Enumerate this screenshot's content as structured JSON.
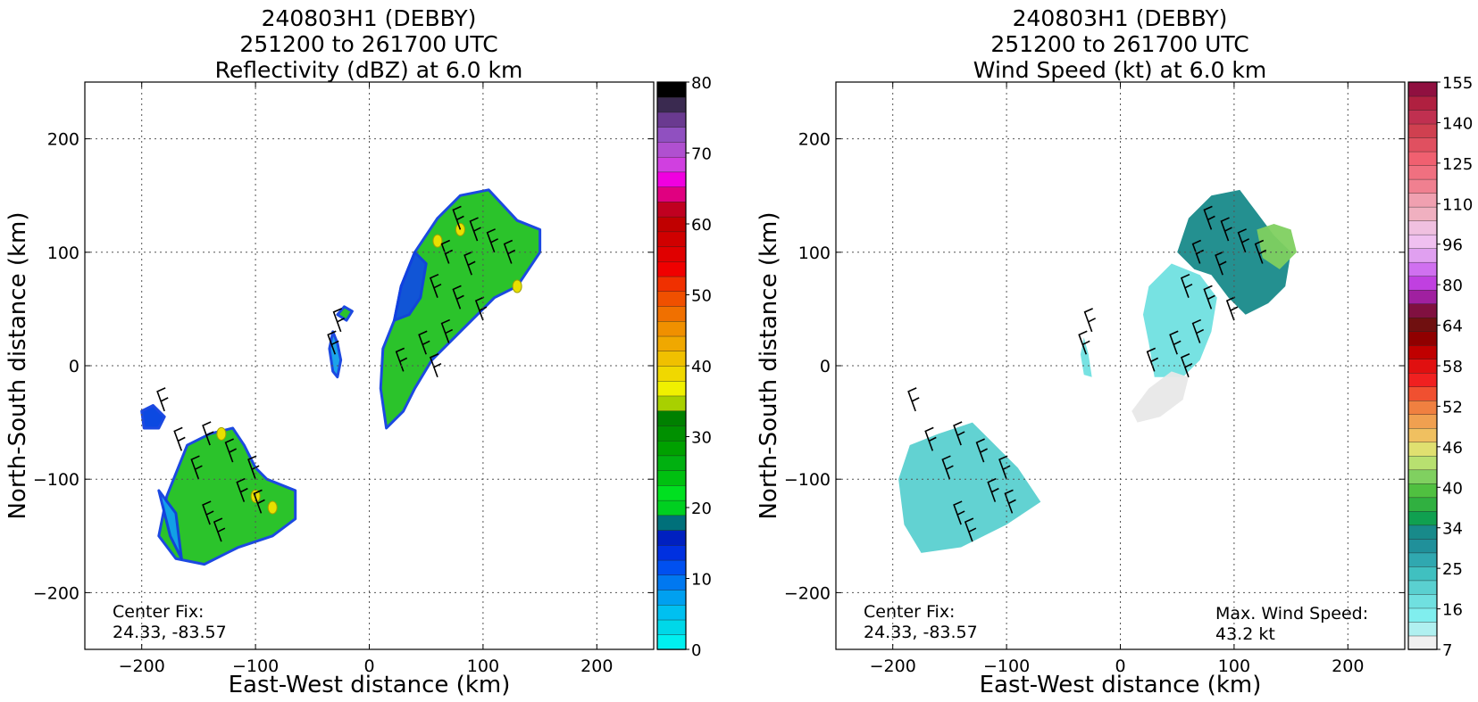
{
  "charts": [
    {
      "id": "reflectivity",
      "title_lines": [
        "240803H1 (DEBBY)",
        "251200 to 261700 UTC",
        "Reflectivity (dBZ) at 6.0 km"
      ],
      "xlabel": "East-West distance (km)",
      "ylabel": "North-South distance (km)",
      "xticks": [
        -200,
        -100,
        0,
        100,
        200
      ],
      "yticks": [
        200,
        100,
        0,
        -100,
        -200
      ],
      "center_fix_label": "Center Fix:",
      "center_fix_value": "24.33, -83.57",
      "max_wind_label": "",
      "max_wind_value": "",
      "colorbar_ticks": [
        "80",
        "70",
        "60",
        "50",
        "40",
        "30",
        "20",
        "10",
        "0"
      ]
    },
    {
      "id": "wind",
      "title_lines": [
        "240803H1 (DEBBY)",
        "251200 to 261700 UTC",
        "Wind Speed (kt) at 6.0 km"
      ],
      "xlabel": "East-West distance (km)",
      "ylabel": "North-South distance (km)",
      "xticks": [
        -200,
        -100,
        0,
        100,
        200
      ],
      "yticks": [
        200,
        100,
        0,
        -100,
        -200
      ],
      "center_fix_label": "Center Fix:",
      "center_fix_value": "24.33, -83.57",
      "max_wind_label": "Max. Wind Speed:",
      "max_wind_value": "43.2 kt",
      "colorbar_ticks": [
        "155",
        "140",
        "125",
        "110",
        "96",
        "80",
        "64",
        "58",
        "52",
        "46",
        "40",
        "34",
        "25",
        "16",
        "7"
      ]
    }
  ],
  "chart_data": [
    {
      "type": "heatmap",
      "title": "240803H1 (DEBBY) 251200 to 261700 UTC Reflectivity (dBZ) at 6.0 km",
      "xlabel": "East-West distance (km)",
      "ylabel": "North-South distance (km)",
      "xlim": [
        -250,
        250
      ],
      "ylim": [
        -250,
        250
      ],
      "grid": true,
      "colorbar": {
        "vmin": 0,
        "vmax": 80,
        "colors": [
          "#00f0f0",
          "#00d8e8",
          "#00c0f0",
          "#00a0f0",
          "#0078f0",
          "#0050f0",
          "#0030e0",
          "#0020c0",
          "#00707a",
          "#00d020",
          "#00e020",
          "#00c010",
          "#00b010",
          "#00a000",
          "#009000",
          "#008000",
          "#a8d000",
          "#f0f000",
          "#f0d800",
          "#f0c000",
          "#f0a800",
          "#f09000",
          "#f07000",
          "#f05000",
          "#f03000",
          "#f00000",
          "#e00000",
          "#d00000",
          "#c00000",
          "#c00020",
          "#e00080",
          "#f000e0",
          "#d040e0",
          "#b050d0",
          "#9050c0",
          "#6a3a90",
          "#3a2a50",
          "#000000"
        ],
        "ticks": [
          0,
          10,
          20,
          30,
          40,
          50,
          60,
          70,
          80
        ]
      },
      "regions": [
        {
          "name": "main band NE",
          "dbz": 22,
          "color": "#20c020",
          "polygon": [
            [
              15,
              -55
            ],
            [
              30,
              -40
            ],
            [
              40,
              -20
            ],
            [
              55,
              5
            ],
            [
              80,
              30
            ],
            [
              110,
              60
            ],
            [
              130,
              70
            ],
            [
              150,
              100
            ],
            [
              150,
              120
            ],
            [
              130,
              128
            ],
            [
              105,
              155
            ],
            [
              80,
              150
            ],
            [
              60,
              130
            ],
            [
              40,
              100
            ],
            [
              28,
              70
            ],
            [
              22,
              40
            ],
            [
              12,
              15
            ],
            [
              10,
              -20
            ]
          ]
        },
        {
          "name": "northeast rim low dbz",
          "dbz": 12,
          "color": "#1050e0",
          "polygon": [
            [
              28,
              70
            ],
            [
              40,
              100
            ],
            [
              50,
              90
            ],
            [
              45,
              60
            ],
            [
              35,
              45
            ],
            [
              22,
              40
            ]
          ]
        },
        {
          "name": "small cell north",
          "dbz": 20,
          "color": "#20c020",
          "polygon": [
            [
              -28,
              45
            ],
            [
              -22,
              52
            ],
            [
              -15,
              48
            ],
            [
              -20,
              40
            ]
          ]
        },
        {
          "name": "west arc",
          "dbz": 5,
          "color": "#10a0e8",
          "polygon": [
            [
              -32,
              30
            ],
            [
              -28,
              20
            ],
            [
              -25,
              5
            ],
            [
              -28,
              -10
            ],
            [
              -32,
              -5
            ],
            [
              -35,
              15
            ]
          ]
        },
        {
          "name": "SW cluster",
          "dbz": 20,
          "color": "#20c020",
          "polygon": [
            [
              -160,
              -70
            ],
            [
              -140,
              -60
            ],
            [
              -120,
              -55
            ],
            [
              -110,
              -70
            ],
            [
              -100,
              -90
            ],
            [
              -90,
              -100
            ],
            [
              -65,
              -110
            ],
            [
              -65,
              -135
            ],
            [
              -85,
              -150
            ],
            [
              -115,
              -160
            ],
            [
              -145,
              -175
            ],
            [
              -170,
              -170
            ],
            [
              -185,
              -150
            ],
            [
              -178,
              -115
            ]
          ]
        },
        {
          "name": "SW outer ring",
          "dbz": 8,
          "color": "#10a0f0",
          "polygon": [
            [
              -185,
              -110
            ],
            [
              -175,
              -150
            ],
            [
              -165,
              -170
            ],
            [
              -170,
              -130
            ]
          ]
        },
        {
          "name": "west cell",
          "dbz": 14,
          "color": "#0040e0",
          "polygon": [
            [
              -200,
              -40
            ],
            [
              -190,
              -35
            ],
            [
              -180,
              -45
            ],
            [
              -185,
              -55
            ],
            [
              -198,
              -55
            ]
          ]
        }
      ],
      "maxima": [
        [
          80,
          120
        ],
        [
          60,
          110
        ],
        [
          130,
          70
        ],
        [
          -130,
          -60
        ],
        [
          -100,
          -115
        ],
        [
          -85,
          -125
        ]
      ]
    },
    {
      "type": "heatmap",
      "title": "240803H1 (DEBBY) 251200 to 261700 UTC Wind Speed (kt) at 6.0 km",
      "xlabel": "East-West distance (km)",
      "ylabel": "North-South distance (km)",
      "xlim": [
        -250,
        250
      ],
      "ylim": [
        -250,
        250
      ],
      "grid": true,
      "colorbar": {
        "ticks": [
          7,
          16,
          25,
          34,
          40,
          46,
          52,
          58,
          64,
          80,
          96,
          110,
          125,
          140,
          155
        ],
        "colors": [
          "#f0f0f0",
          "#b0f0f0",
          "#80eeee",
          "#70e0e0",
          "#5ad0d0",
          "#40c0c0",
          "#30a8b0",
          "#20909a",
          "#188a8a",
          "#10a050",
          "#30b040",
          "#50c040",
          "#80d060",
          "#b8e070",
          "#e0e070",
          "#f0c060",
          "#f0a050",
          "#f08040",
          "#f05030",
          "#f02020",
          "#e01010",
          "#c00000",
          "#900000",
          "#701010",
          "#801040",
          "#a020a0",
          "#c040e0",
          "#d070f0",
          "#e0a0f0",
          "#f0c0f0",
          "#f0c0e0",
          "#f0b0c0",
          "#f0a0b0",
          "#f08090",
          "#f07080",
          "#f06070",
          "#e05060",
          "#d04050",
          "#c03050",
          "#b02040",
          "#901040"
        ]
      },
      "regions": [
        {
          "name": "main band wind",
          "kt": 28,
          "color": "#188a8a",
          "polygon": [
            [
              50,
              100
            ],
            [
              60,
              130
            ],
            [
              80,
              150
            ],
            [
              105,
              155
            ],
            [
              120,
              135
            ],
            [
              135,
              115
            ],
            [
              150,
              100
            ],
            [
              145,
              70
            ],
            [
              130,
              55
            ],
            [
              110,
              45
            ],
            [
              95,
              60
            ],
            [
              80,
              80
            ],
            [
              65,
              85
            ]
          ]
        },
        {
          "name": "light inner band",
          "kt": 14,
          "color": "#70e0e0",
          "polygon": [
            [
              25,
              70
            ],
            [
              45,
              90
            ],
            [
              70,
              80
            ],
            [
              85,
              60
            ],
            [
              80,
              30
            ],
            [
              70,
              5
            ],
            [
              55,
              -10
            ],
            [
              30,
              -10
            ],
            [
              25,
              20
            ],
            [
              20,
              45
            ]
          ]
        },
        {
          "name": "center calm",
          "kt": 5,
          "color": "#e8e8e8",
          "polygon": [
            [
              10,
              -40
            ],
            [
              25,
              -20
            ],
            [
              45,
              -5
            ],
            [
              60,
              -10
            ],
            [
              55,
              -30
            ],
            [
              35,
              -45
            ],
            [
              15,
              -50
            ]
          ]
        },
        {
          "name": "NE strong cell",
          "kt": 40,
          "color": "#80d060",
          "polygon": [
            [
              120,
              120
            ],
            [
              135,
              125
            ],
            [
              150,
              120
            ],
            [
              155,
              100
            ],
            [
              140,
              85
            ],
            [
              125,
              95
            ]
          ]
        },
        {
          "name": "SW band",
          "kt": 18,
          "color": "#5ad0d0",
          "polygon": [
            [
              -185,
              -70
            ],
            [
              -160,
              -60
            ],
            [
              -130,
              -50
            ],
            [
              -110,
              -70
            ],
            [
              -90,
              -90
            ],
            [
              -70,
              -120
            ],
            [
              -100,
              -140
            ],
            [
              -140,
              -160
            ],
            [
              -175,
              -165
            ],
            [
              -190,
              -140
            ],
            [
              -195,
              -100
            ]
          ]
        },
        {
          "name": "west arc wind",
          "kt": 16,
          "color": "#70e0e0",
          "polygon": [
            [
              -32,
              25
            ],
            [
              -28,
              10
            ],
            [
              -25,
              -10
            ],
            [
              -32,
              -8
            ],
            [
              -35,
              10
            ]
          ]
        }
      ],
      "max_wind_kt": 43.2
    }
  ]
}
